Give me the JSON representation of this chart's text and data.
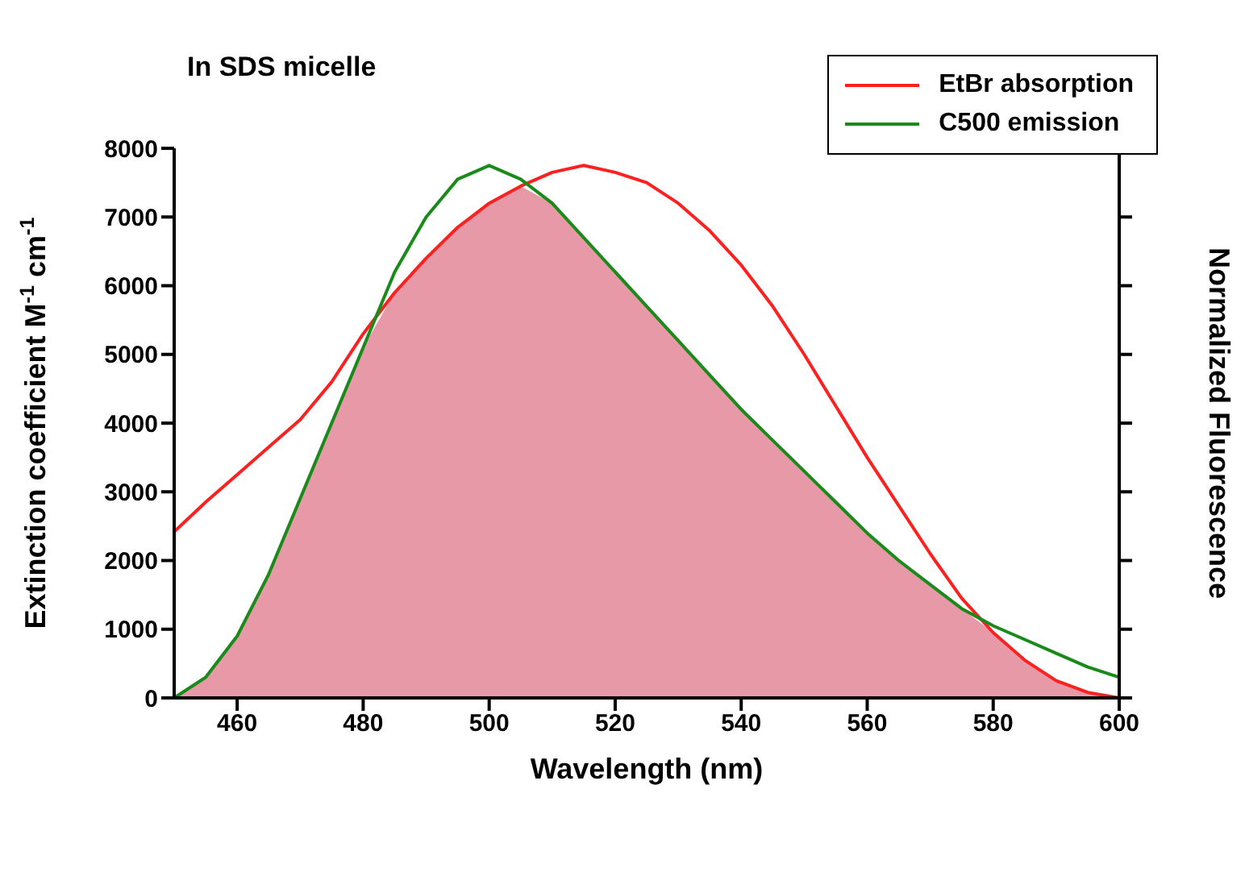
{
  "chart_data": {
    "type": "line",
    "xlabel": "Wavelength (nm)",
    "ylabel": "Extinction coefficient M$^{-1}$ cm$^{-1}$",
    "y2label": "Normalized Fluorescence",
    "annotations": [
      "In SDS micelle"
    ],
    "x": [
      450,
      455,
      460,
      465,
      470,
      475,
      480,
      485,
      490,
      495,
      500,
      505,
      510,
      515,
      520,
      525,
      530,
      535,
      540,
      545,
      550,
      555,
      560,
      565,
      570,
      575,
      580,
      585,
      590,
      595,
      600
    ],
    "series": [
      {
        "type": "area",
        "color": "#e899a8",
        "values": [
          0,
          300,
          900,
          1800,
          2900,
          4000,
          5100,
          5900,
          6400,
          6850,
          7200,
          7450,
          7200,
          6700,
          6200,
          5700,
          5200,
          4700,
          4200,
          3750,
          3300,
          2850,
          2400,
          2000,
          1650,
          1300,
          950,
          550,
          250,
          80,
          0
        ]
      },
      {
        "name": "EtBr absorption",
        "color": "#ff2020",
        "values": [
          2420,
          2850,
          3250,
          3650,
          4050,
          4600,
          5300,
          5900,
          6400,
          6850,
          7200,
          7450,
          7650,
          7750,
          7650,
          7500,
          7200,
          6800,
          6300,
          5700,
          5000,
          4250,
          3500,
          2800,
          2100,
          1450,
          950,
          550,
          250,
          80,
          0
        ]
      },
      {
        "name": "C500 emission",
        "color": "#1a8a1a",
        "values": [
          0,
          300,
          900,
          1800,
          2900,
          4000,
          5100,
          6200,
          7000,
          7550,
          7750,
          7550,
          7200,
          6700,
          6200,
          5700,
          5200,
          4700,
          4200,
          3750,
          3300,
          2850,
          2400,
          2000,
          1650,
          1300,
          1050,
          850,
          650,
          450,
          300
        ]
      }
    ],
    "xlim": [
      450,
      600
    ],
    "xticks": [
      460,
      480,
      500,
      520,
      540,
      560,
      580,
      600
    ],
    "ylim": [
      0,
      8000
    ],
    "yticks": [
      0,
      1000,
      2000,
      3000,
      4000,
      5000,
      6000,
      7000,
      8000
    ],
    "grid": false,
    "legend": "top right",
    "marker": "none",
    "line_style": "solid"
  }
}
